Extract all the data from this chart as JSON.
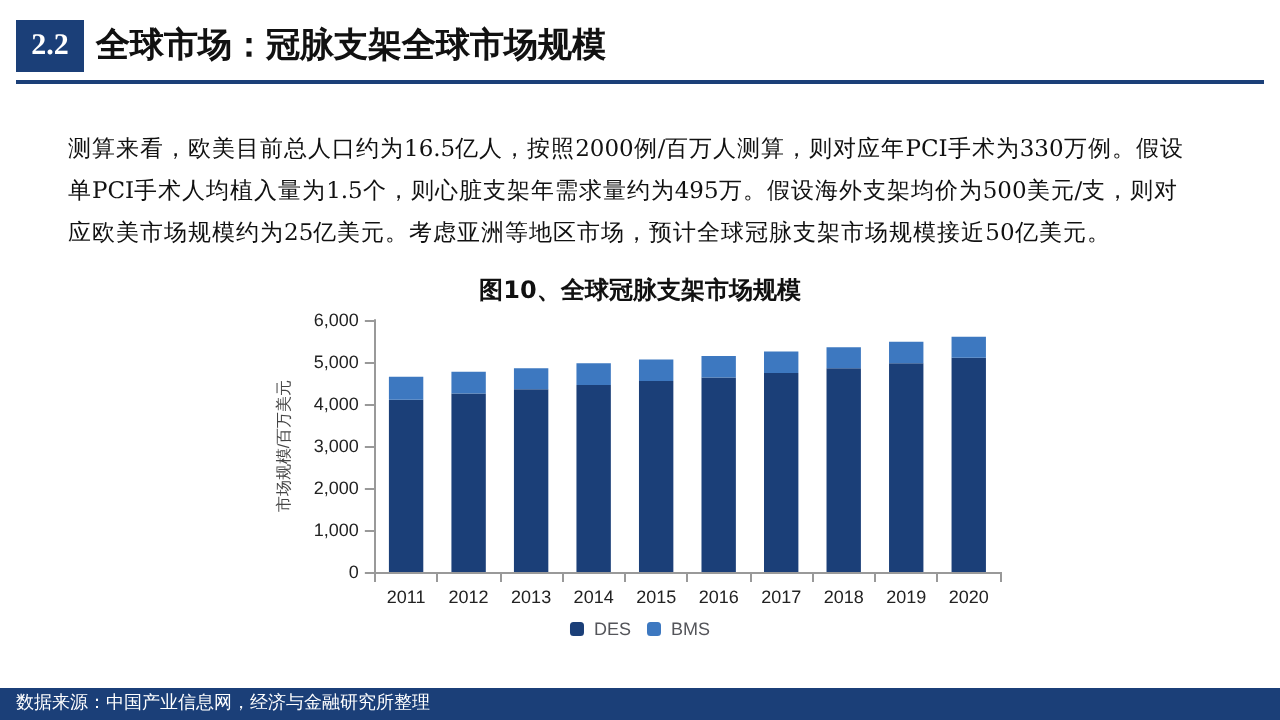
{
  "chart_data": {
    "type": "bar",
    "title": "全球市场：冠脉支架全球市场规模",
    "subtitle": "测算来看，欧美目前总人口约为16.5亿人，按照2000例/百万人测算，则对应年PCI手术为330万例。假设单PCI手术人均植入量为1.5个，则心脏支架年需求量约为495万。假设海外支架均价为500美元/支，则对应欧美市场规模约为25亿美元。考虑亚洲等地区市场，预计全球冠脉支架市场规模接近50亿美元。",
    "annotations": [
      "2.2",
      "图10、全球冠脉支架市场规模",
      "数据来源：中国产业信息网，经济与金融研究所整理"
    ],
    "ylabel": "市场规模/百万美元",
    "categories": [
      "2011",
      "2012",
      "2013",
      "2014",
      "2015",
      "2016",
      "2017",
      "2018",
      "2019",
      "2020"
    ],
    "stacked": true,
    "series": [
      {
        "name": "DES",
        "color": "#1b3f78",
        "values": [
          4100,
          4250,
          4350,
          4450,
          4550,
          4630,
          4740,
          4850,
          4970,
          5100
        ]
      },
      {
        "name": "BMS",
        "color": "#3d78c0",
        "values": [
          550,
          520,
          500,
          520,
          510,
          510,
          510,
          500,
          510,
          500
        ]
      }
    ],
    "ylim": [
      0,
      6000
    ],
    "yticks": [
      0,
      {
        "value": 1000,
        "label": "1,000"
      },
      {
        "value": 2000,
        "label": "2,000"
      },
      {
        "value": 3000,
        "label": "3,000"
      },
      {
        "value": 4000,
        "label": "4,000"
      },
      {
        "value": 5000,
        "label": "5,000"
      },
      {
        "value": 6000,
        "label": "6,000"
      }
    ],
    "grid": false,
    "legend": "bottom"
  }
}
